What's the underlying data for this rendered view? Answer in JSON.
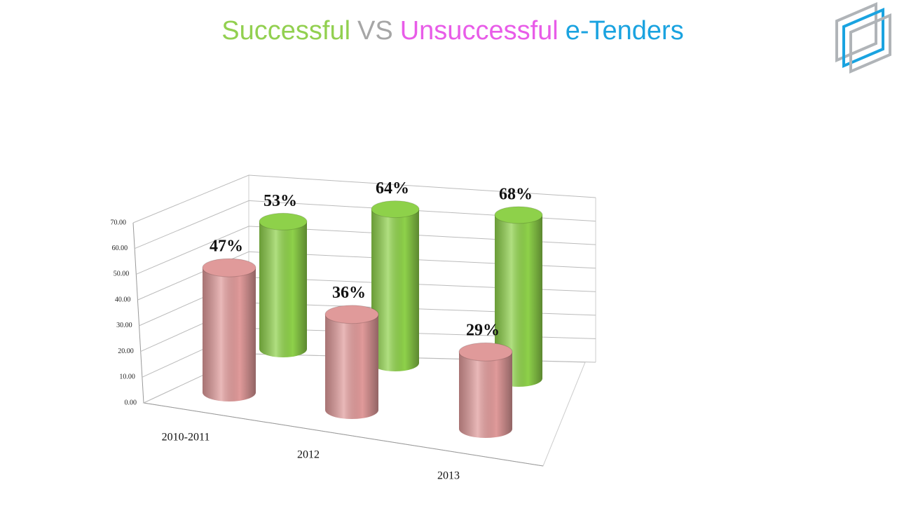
{
  "chart_data": {
    "type": "cylinder3d",
    "title": [
      "Successful",
      "VS",
      "Unsuccessful",
      "e-Tenders"
    ],
    "title_colors": [
      "#92d050",
      "#a6a6a6",
      "#e85ce8",
      "#1aa3e0"
    ],
    "categories": [
      "2010-2011",
      "2012",
      "2013"
    ],
    "series": [
      {
        "color": "#e09a9a",
        "values": [
          47,
          36,
          29
        ],
        "value_labels": [
          "47%",
          "36%",
          "29%"
        ]
      },
      {
        "color": "#8ed14a",
        "values": [
          53,
          64,
          68
        ],
        "value_labels": [
          "53%",
          "64%",
          "68%"
        ]
      }
    ],
    "ylim": [
      0,
      70
    ],
    "yticks": [
      {
        "value": 0,
        "label": "0.00"
      },
      {
        "value": 10,
        "label": "10.00"
      },
      {
        "value": 20,
        "label": "20.00"
      },
      {
        "value": 30,
        "label": "30.00"
      },
      {
        "value": 40,
        "label": "40.00"
      },
      {
        "value": 50,
        "label": "50.00"
      },
      {
        "value": 60,
        "label": "60.00"
      },
      {
        "value": 70,
        "label": "70.00"
      }
    ],
    "grid": true
  }
}
